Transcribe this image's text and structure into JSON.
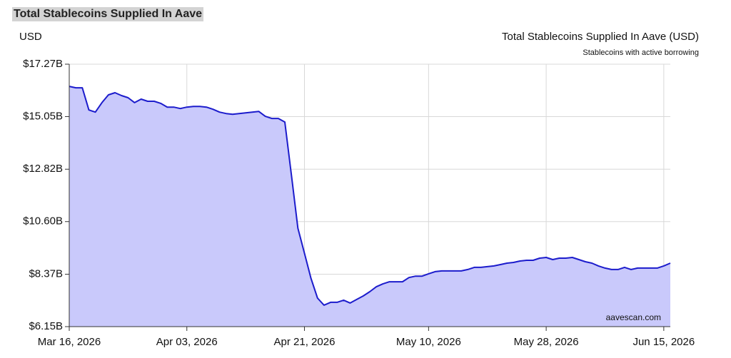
{
  "page_title": "Total Stablecoins Supplied In Aave",
  "chart_data": {
    "type": "area",
    "title": "Total Stablecoins Supplied In Aave (USD)",
    "subtitle": "Stablecoins with active borrowing",
    "y_label": "USD",
    "annotation": "aavescan.com",
    "x": [
      "2026-03-16",
      "2026-03-17",
      "2026-03-18",
      "2026-03-19",
      "2026-03-20",
      "2026-03-21",
      "2026-03-22",
      "2026-03-23",
      "2026-03-24",
      "2026-03-25",
      "2026-03-26",
      "2026-03-27",
      "2026-03-28",
      "2026-03-29",
      "2026-03-30",
      "2026-03-31",
      "2026-04-01",
      "2026-04-02",
      "2026-04-03",
      "2026-04-04",
      "2026-04-05",
      "2026-04-06",
      "2026-04-07",
      "2026-04-08",
      "2026-04-09",
      "2026-04-10",
      "2026-04-11",
      "2026-04-12",
      "2026-04-13",
      "2026-04-14",
      "2026-04-15",
      "2026-04-16",
      "2026-04-17",
      "2026-04-18",
      "2026-04-19",
      "2026-04-20",
      "2026-04-21",
      "2026-04-22",
      "2026-04-23",
      "2026-04-24",
      "2026-04-25",
      "2026-04-26",
      "2026-04-27",
      "2026-04-28",
      "2026-04-29",
      "2026-04-30",
      "2026-05-01",
      "2026-05-02",
      "2026-05-03",
      "2026-05-04",
      "2026-05-05",
      "2026-05-06",
      "2026-05-07",
      "2026-05-08",
      "2026-05-09",
      "2026-05-10",
      "2026-05-11",
      "2026-05-12",
      "2026-05-13",
      "2026-05-14",
      "2026-05-15",
      "2026-05-16",
      "2026-05-17",
      "2026-05-18",
      "2026-05-19",
      "2026-05-20",
      "2026-05-21",
      "2026-05-22",
      "2026-05-23",
      "2026-05-24",
      "2026-05-25",
      "2026-05-26",
      "2026-05-27",
      "2026-05-28",
      "2026-05-29",
      "2026-05-30",
      "2026-05-31",
      "2026-06-01",
      "2026-06-02",
      "2026-06-03",
      "2026-06-04",
      "2026-06-05",
      "2026-06-06",
      "2026-06-07",
      "2026-06-08",
      "2026-06-09",
      "2026-06-10",
      "2026-06-11",
      "2026-06-12",
      "2026-06-13",
      "2026-06-14",
      "2026-06-15",
      "2026-06-16"
    ],
    "series": [
      {
        "name": "Total Stablecoins Supplied In Aave (USD)",
        "color": "#1c1ccc",
        "fill": "#c9c9fb",
        "values": [
          16.33,
          16.27,
          16.27,
          15.33,
          15.24,
          15.64,
          15.97,
          16.06,
          15.94,
          15.85,
          15.64,
          15.79,
          15.7,
          15.7,
          15.61,
          15.45,
          15.45,
          15.39,
          15.45,
          15.48,
          15.48,
          15.45,
          15.36,
          15.24,
          15.18,
          15.15,
          15.18,
          15.21,
          15.24,
          15.27,
          15.06,
          14.97,
          14.97,
          14.82,
          12.58,
          10.32,
          9.26,
          8.2,
          7.36,
          7.06,
          7.18,
          7.18,
          7.27,
          7.15,
          7.3,
          7.45,
          7.63,
          7.84,
          7.96,
          8.05,
          8.05,
          8.05,
          8.23,
          8.29,
          8.29,
          8.39,
          8.48,
          8.51,
          8.51,
          8.51,
          8.51,
          8.57,
          8.66,
          8.66,
          8.69,
          8.72,
          8.78,
          8.84,
          8.87,
          8.93,
          8.96,
          8.96,
          9.05,
          9.08,
          8.99,
          9.05,
          9.05,
          9.08,
          8.99,
          8.9,
          8.84,
          8.72,
          8.63,
          8.57,
          8.57,
          8.66,
          8.57,
          8.63,
          8.63,
          8.63,
          8.63,
          8.72,
          8.84
        ]
      }
    ],
    "xlim": [
      "2026-03-16",
      "2026-06-16"
    ],
    "xticks": [
      {
        "value": "2026-03-16",
        "label": "Mar 16, 2026"
      },
      {
        "value": "2026-04-03",
        "label": "Apr 03, 2026"
      },
      {
        "value": "2026-04-21",
        "label": "Apr 21, 2026"
      },
      {
        "value": "2026-05-10",
        "label": "May 10, 2026"
      },
      {
        "value": "2026-05-28",
        "label": "May 28, 2026"
      },
      {
        "value": "2026-06-15",
        "label": "Jun 15, 2026"
      }
    ],
    "ylim": [
      6.15,
      17.27
    ],
    "yticks": [
      {
        "value": 6.15,
        "label": "$6.15B"
      },
      {
        "value": 8.37,
        "label": "$8.37B"
      },
      {
        "value": 10.6,
        "label": "$10.60B"
      },
      {
        "value": 12.82,
        "label": "$12.82B"
      },
      {
        "value": 15.05,
        "label": "$15.05B"
      },
      {
        "value": 17.27,
        "label": "$17.27B"
      }
    ],
    "grid": true
  }
}
